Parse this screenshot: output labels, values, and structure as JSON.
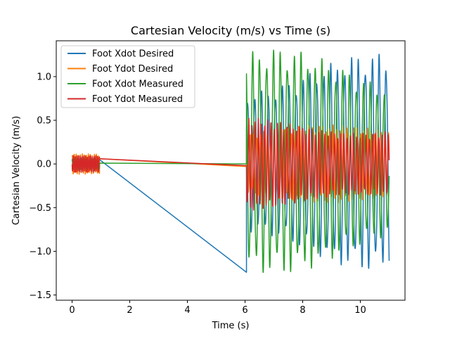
{
  "chart_data": {
    "type": "line",
    "title": "Cartesian Velocity (m/s) vs Time (s)",
    "xlabel": "Time (s)",
    "ylabel": "Cartesian Velocity (m/s)",
    "xlim": [
      -0.55,
      11.55
    ],
    "ylim": [
      -1.56,
      1.41
    ],
    "xticks": [
      0,
      2,
      4,
      6,
      8,
      10
    ],
    "yticks": [
      -1.5,
      -1.0,
      -0.5,
      0.0,
      0.5,
      1.0
    ],
    "xtick_labels": [
      "0",
      "2",
      "4",
      "6",
      "8",
      "10"
    ],
    "ytick_labels": [
      "−1.5",
      "−1.0",
      "−0.5",
      "0.0",
      "0.5",
      "1.0"
    ],
    "grid": false,
    "legend_position": "top-left",
    "series": [
      {
        "name": "Foot Xdot Desired",
        "color": "#1f77b4",
        "segments": [
          {
            "kind": "oscillation",
            "t_start": 0.0,
            "t_end": 0.95,
            "center": 0.0,
            "amplitude": 0.08,
            "period": 0.1
          },
          {
            "kind": "line",
            "points": [
              [
                0.95,
                0.05
              ],
              [
                6.05,
                -1.24
              ]
            ]
          },
          {
            "kind": "oscillation",
            "t_start": 6.05,
            "t_end": 11.0,
            "center": 0.02,
            "amplitude": 1.25,
            "period": 0.24
          }
        ]
      },
      {
        "name": "Foot Ydot Desired",
        "color": "#ff7f0e",
        "segments": [
          {
            "kind": "oscillation",
            "t_start": 0.0,
            "t_end": 0.95,
            "center": 0.0,
            "amplitude": 0.12,
            "period": 0.07
          },
          {
            "kind": "line",
            "points": [
              [
                0.95,
                0.06
              ],
              [
                6.05,
                -0.03
              ]
            ]
          },
          {
            "kind": "oscillation",
            "t_start": 6.05,
            "t_end": 11.0,
            "center": 0.0,
            "amplitude": 0.45,
            "period": 0.12
          }
        ]
      },
      {
        "name": "Foot Xdot Measured",
        "color": "#2ca02c",
        "segments": [
          {
            "kind": "oscillation",
            "t_start": 0.0,
            "t_end": 0.95,
            "center": 0.0,
            "amplitude": 0.08,
            "period": 0.1
          },
          {
            "kind": "line",
            "points": [
              [
                0.95,
                0.01
              ],
              [
                6.05,
                0.0
              ]
            ]
          },
          {
            "kind": "oscillation",
            "t_start": 6.05,
            "t_end": 11.0,
            "center": 0.03,
            "amplitude": 1.3,
            "period": 0.24
          }
        ]
      },
      {
        "name": "Foot Ydot Measured",
        "color": "#d62728",
        "segments": [
          {
            "kind": "oscillation",
            "t_start": 0.0,
            "t_end": 0.95,
            "center": 0.0,
            "amplitude": 0.15,
            "period": 0.06
          },
          {
            "kind": "line",
            "points": [
              [
                0.95,
                0.06
              ],
              [
                6.05,
                -0.02
              ]
            ]
          },
          {
            "kind": "oscillation",
            "t_start": 6.05,
            "t_end": 11.0,
            "center": 0.0,
            "amplitude": 0.55,
            "period": 0.11
          }
        ]
      }
    ]
  }
}
